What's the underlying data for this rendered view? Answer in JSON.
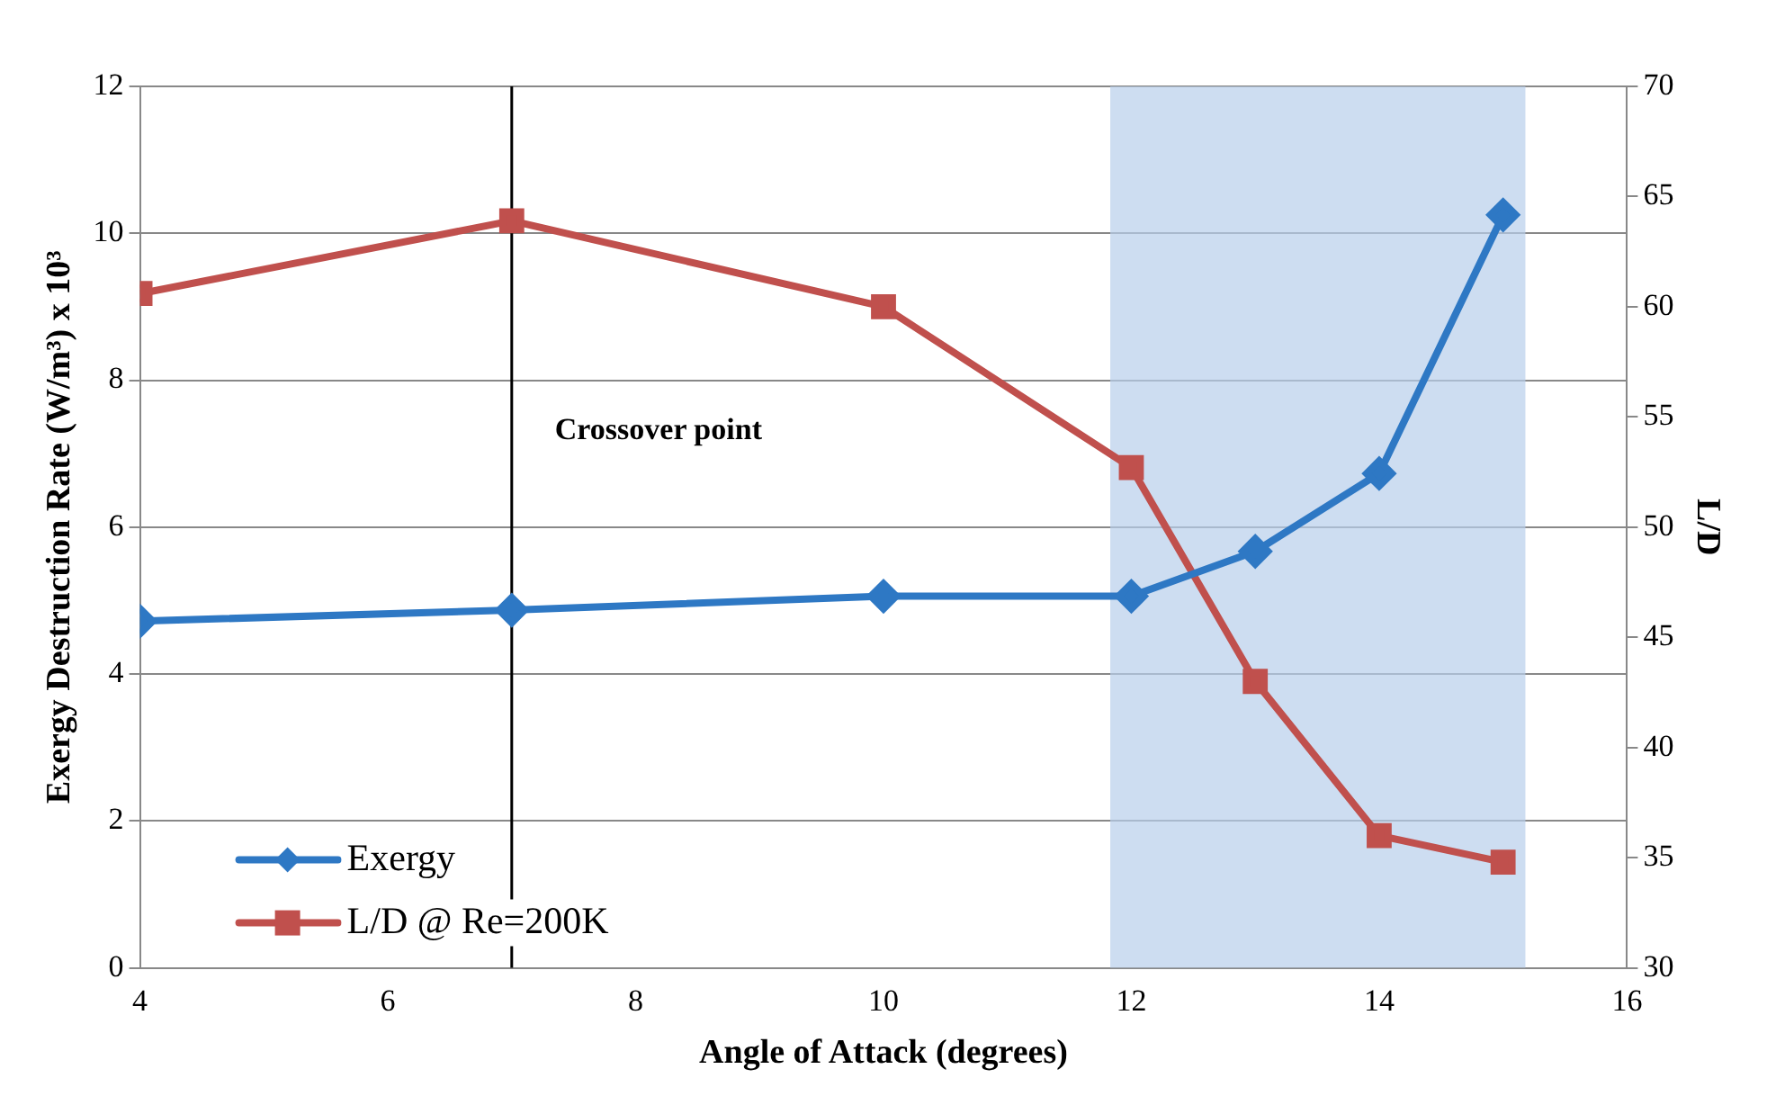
{
  "chart_data": {
    "type": "line",
    "xlabel": "Angle of Attack (degrees)",
    "ylabel": "Exergy Destruction Rate (W/m³) x 10³",
    "y2label": "L/D",
    "x": [
      4,
      7,
      10,
      12,
      13,
      14,
      15
    ],
    "series": [
      {
        "name": "Exergy",
        "color": "#2e78c4",
        "marker": "diamond",
        "values": [
          4.72,
          4.87,
          5.06,
          5.06,
          5.67,
          6.73,
          10.25
        ]
      },
      {
        "name": "L/D @ Re=200K",
        "color": "#c0504d",
        "marker": "square",
        "axis": "y2",
        "values": [
          60.6,
          63.9,
          60.0,
          52.7,
          43.0,
          36.0,
          34.8
        ]
      }
    ],
    "xlim": [
      4,
      16
    ],
    "xticks": [
      4,
      6,
      8,
      10,
      12,
      14,
      16
    ],
    "ylim": [
      0,
      12
    ],
    "yticks": [
      0,
      2,
      4,
      6,
      8,
      10,
      12
    ],
    "y2lim": [
      30,
      70
    ],
    "y2ticks": [
      30,
      35,
      40,
      45,
      50,
      55,
      60,
      65,
      70
    ],
    "grid": "y",
    "legend": "bottom left",
    "line_style": "solid",
    "ref_lines": [
      {
        "axis": "x",
        "value": 7,
        "color": "#000000"
      }
    ],
    "bands": [
      {
        "axis": "x",
        "from": 11.83,
        "to": 15.18,
        "color": "#b8cfeb"
      }
    ],
    "annotations": [
      {
        "text": "Crossover point",
        "x": 7,
        "y": 7.3
      }
    ]
  }
}
